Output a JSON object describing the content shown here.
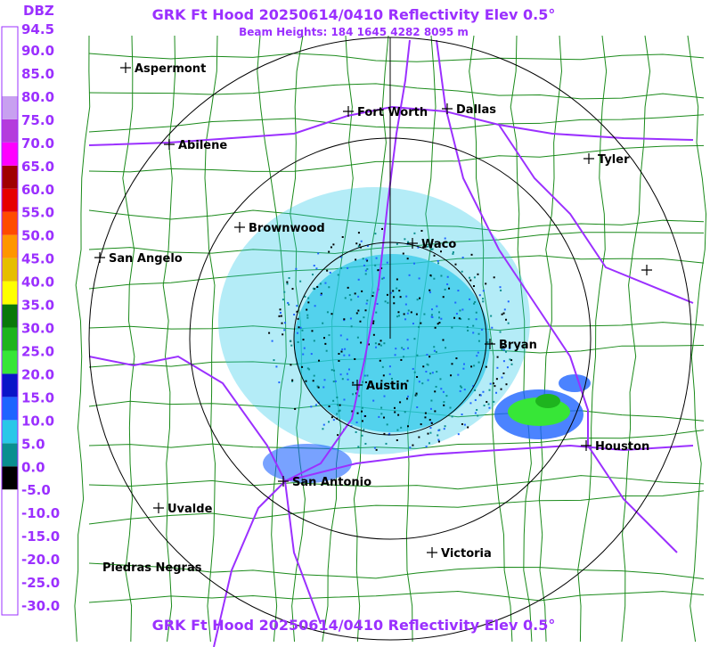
{
  "header": {
    "title": "GRK Ft Hood 20250614/0410 Reflectivity Elev 0.5°",
    "subtitle": "Beam Heights: 184 1645 4282 8095 m"
  },
  "legend": {
    "title": "DBZ",
    "labels": [
      "94.5",
      "90.0",
      "85.0",
      "80.0",
      "75.0",
      "70.0",
      "65.0",
      "60.0",
      "55.0",
      "50.0",
      "45.0",
      "40.0",
      "35.0",
      "30.0",
      "25.0",
      "20.0",
      "15.0",
      "10.0",
      "5.0",
      "0.0",
      "-5.0",
      "-10.0",
      "-15.0",
      "-20.0",
      "-25.0",
      "-30.0"
    ]
  },
  "cities": [
    {
      "label": "Aspermont"
    },
    {
      "label": "Fort Worth"
    },
    {
      "label": "Dallas"
    },
    {
      "label": "Abilene"
    },
    {
      "label": "Tyler"
    },
    {
      "label": "Brownwood"
    },
    {
      "label": "Waco"
    },
    {
      "label": "San Angelo"
    },
    {
      "label": "Bryan"
    },
    {
      "label": "Austin"
    },
    {
      "label": "Houston"
    },
    {
      "label": "San Antonio"
    },
    {
      "label": "Uvalde"
    },
    {
      "label": "Victoria"
    },
    {
      "label": "Piedras Negras"
    }
  ]
}
